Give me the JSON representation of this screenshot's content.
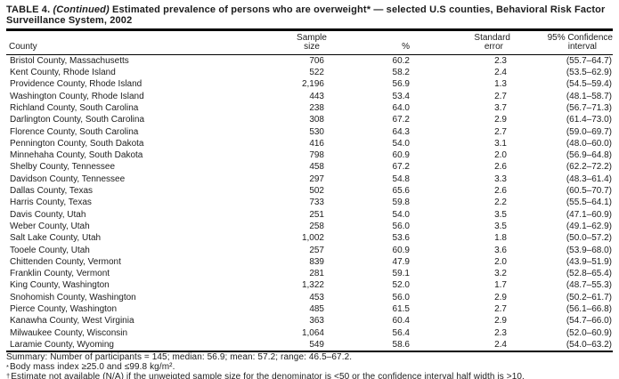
{
  "document": {
    "title": {
      "prefix": "TABLE 4. ",
      "continued": "(Continued)",
      "rest": " Estimated prevalence of persons who are overweight* — selected U.S counties, Behavioral Risk Factor Surveillance System, 2002"
    },
    "table": {
      "columns": [
        {
          "id": "county",
          "line1": "",
          "line2": "County"
        },
        {
          "id": "sample_size",
          "line1": "Sample",
          "line2": "size"
        },
        {
          "id": "pct",
          "line1": "",
          "line2": "%"
        },
        {
          "id": "std_err",
          "line1": "Standard",
          "line2": "error"
        },
        {
          "id": "ci",
          "line1": "95% Confidence",
          "line2": "interval"
        }
      ],
      "rows": [
        {
          "county": "Bristol County, Massachusetts",
          "sample_size": "706",
          "pct": "60.2",
          "std_err": "2.3",
          "ci": "(55.7–64.7)"
        },
        {
          "county": "Kent County, Rhode Island",
          "sample_size": "522",
          "pct": "58.2",
          "std_err": "2.4",
          "ci": "(53.5–62.9)"
        },
        {
          "county": "Providence County, Rhode Island",
          "sample_size": "2,196",
          "pct": "56.9",
          "std_err": "1.3",
          "ci": "(54.5–59.4)"
        },
        {
          "county": "Washington County, Rhode Island",
          "sample_size": "443",
          "pct": "53.4",
          "std_err": "2.7",
          "ci": "(48.1–58.7)"
        },
        {
          "county": "Richland County, South Carolina",
          "sample_size": "238",
          "pct": "64.0",
          "std_err": "3.7",
          "ci": "(56.7–71.3)"
        },
        {
          "county": "Darlington County, South Carolina",
          "sample_size": "308",
          "pct": "67.2",
          "std_err": "2.9",
          "ci": "(61.4–73.0)"
        },
        {
          "county": "Florence County, South Carolina",
          "sample_size": "530",
          "pct": "64.3",
          "std_err": "2.7",
          "ci": "(59.0–69.7)"
        },
        {
          "county": "Pennington County, South Dakota",
          "sample_size": "416",
          "pct": "54.0",
          "std_err": "3.1",
          "ci": "(48.0–60.0)"
        },
        {
          "county": "Minnehaha County, South Dakota",
          "sample_size": "798",
          "pct": "60.9",
          "std_err": "2.0",
          "ci": "(56.9–64.8)"
        },
        {
          "county": "Shelby County, Tennessee",
          "sample_size": "458",
          "pct": "67.2",
          "std_err": "2.6",
          "ci": "(62.2–72.2)"
        },
        {
          "county": "Davidson County, Tennessee",
          "sample_size": "297",
          "pct": "54.8",
          "std_err": "3.3",
          "ci": "(48.3–61.4)"
        },
        {
          "county": "Dallas County, Texas",
          "sample_size": "502",
          "pct": "65.6",
          "std_err": "2.6",
          "ci": "(60.5–70.7)"
        },
        {
          "county": "Harris County, Texas",
          "sample_size": "733",
          "pct": "59.8",
          "std_err": "2.2",
          "ci": "(55.5–64.1)"
        },
        {
          "county": "Davis County, Utah",
          "sample_size": "251",
          "pct": "54.0",
          "std_err": "3.5",
          "ci": "(47.1–60.9)"
        },
        {
          "county": "Weber County, Utah",
          "sample_size": "258",
          "pct": "56.0",
          "std_err": "3.5",
          "ci": "(49.1–62.9)"
        },
        {
          "county": "Salt Lake County, Utah",
          "sample_size": "1,002",
          "pct": "53.6",
          "std_err": "1.8",
          "ci": "(50.0–57.2)"
        },
        {
          "county": "Tooele County, Utah",
          "sample_size": "257",
          "pct": "60.9",
          "std_err": "3.6",
          "ci": "(53.9–68.0)"
        },
        {
          "county": "Chittenden County, Vermont",
          "sample_size": "839",
          "pct": "47.9",
          "std_err": "2.0",
          "ci": "(43.9–51.9)"
        },
        {
          "county": "Franklin County, Vermont",
          "sample_size": "281",
          "pct": "59.1",
          "std_err": "3.2",
          "ci": "(52.8–65.4)"
        },
        {
          "county": "King County, Washington",
          "sample_size": "1,322",
          "pct": "52.0",
          "std_err": "1.7",
          "ci": "(48.7–55.3)"
        },
        {
          "county": "Snohomish County, Washington",
          "sample_size": "453",
          "pct": "56.0",
          "std_err": "2.9",
          "ci": "(50.2–61.7)"
        },
        {
          "county": "Pierce County, Washington",
          "sample_size": "485",
          "pct": "61.5",
          "std_err": "2.7",
          "ci": "(56.1–66.8)"
        },
        {
          "county": "Kanawha County, West Virginia",
          "sample_size": "363",
          "pct": "60.4",
          "std_err": "2.9",
          "ci": "(54.7–66.0)"
        },
        {
          "county": "Milwaukee County, Wisconsin",
          "sample_size": "1,064",
          "pct": "56.4",
          "std_err": "2.3",
          "ci": "(52.0–60.9)"
        },
        {
          "county": "Laramie County, Wyoming",
          "sample_size": "549",
          "pct": "58.6",
          "std_err": "2.4",
          "ci": "(54.0–63.2)"
        }
      ]
    },
    "summary": "Summary: Number of participants = 145; median: 56.9; mean: 57.2; range: 46.5–67.2.",
    "footnotes": [
      {
        "marker": "*",
        "text": "Body mass index ≥25.0 and ≤99.8 kg/m²."
      },
      {
        "marker": "†",
        "text": "Estimate not available (N/A) if the unweigted sample size for the denominator is <50 or the confidence interval half width is >10."
      }
    ]
  }
}
